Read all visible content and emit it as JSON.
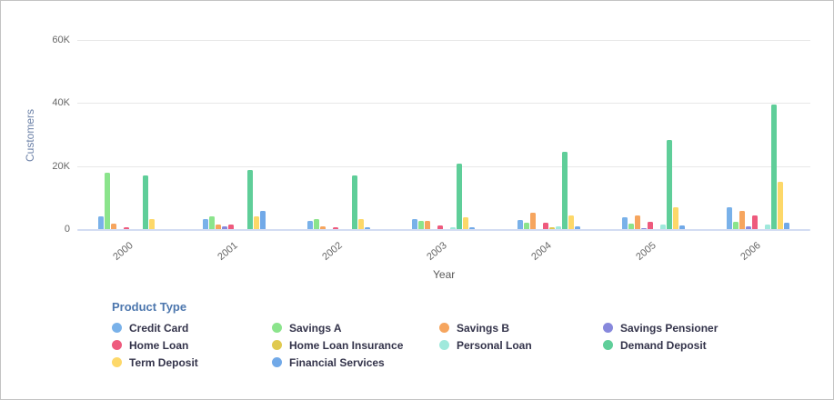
{
  "legend": {
    "title": "Product Type"
  },
  "chart_data": {
    "type": "bar",
    "title": "",
    "xlabel": "Year",
    "ylabel": "Customers",
    "categories": [
      "2000",
      "2001",
      "2002",
      "2003",
      "2004",
      "2005",
      "2006"
    ],
    "yticks": [
      "0",
      "20K",
      "40K",
      "60K"
    ],
    "ytick_values": [
      0,
      20000,
      40000,
      60000
    ],
    "ylim": [
      0,
      60000
    ],
    "grid": true,
    "legend_position": "bottom",
    "series": [
      {
        "name": "Credit Card",
        "color": "#79B1E9",
        "values": [
          4100,
          3300,
          2500,
          3200,
          3000,
          3800,
          6900
        ]
      },
      {
        "name": "Savings A",
        "color": "#8BE48C",
        "values": [
          17800,
          3900,
          3100,
          2700,
          1900,
          1700,
          2200
        ]
      },
      {
        "name": "Savings B",
        "color": "#F6A55E",
        "values": [
          1700,
          1300,
          900,
          2700,
          5300,
          4300,
          5800
        ]
      },
      {
        "name": "Savings Pensioner",
        "color": "#8788DC",
        "values": [
          0,
          900,
          0,
          0,
          0,
          400,
          1000
        ]
      },
      {
        "name": "Home Loan",
        "color": "#EE5A7D",
        "values": [
          500,
          1400,
          700,
          1200,
          2100,
          2400,
          4300
        ]
      },
      {
        "name": "Home Loan Insurance",
        "color": "#E0C94F",
        "values": [
          0,
          0,
          0,
          0,
          600,
          0,
          0
        ]
      },
      {
        "name": "Personal Loan",
        "color": "#A0E9DC",
        "values": [
          0,
          0,
          0,
          700,
          1000,
          1300,
          1500
        ]
      },
      {
        "name": "Demand Deposit",
        "color": "#5FCE99",
        "values": [
          16900,
          18700,
          16900,
          20900,
          24500,
          28200,
          39400
        ]
      },
      {
        "name": "Term Deposit",
        "color": "#FDD869",
        "values": [
          3300,
          3900,
          3300,
          3700,
          4200,
          7000,
          15100
        ]
      },
      {
        "name": "Financial Services",
        "color": "#71A9E8",
        "values": [
          0,
          5900,
          600,
          700,
          1000,
          1100,
          1900
        ]
      }
    ]
  }
}
